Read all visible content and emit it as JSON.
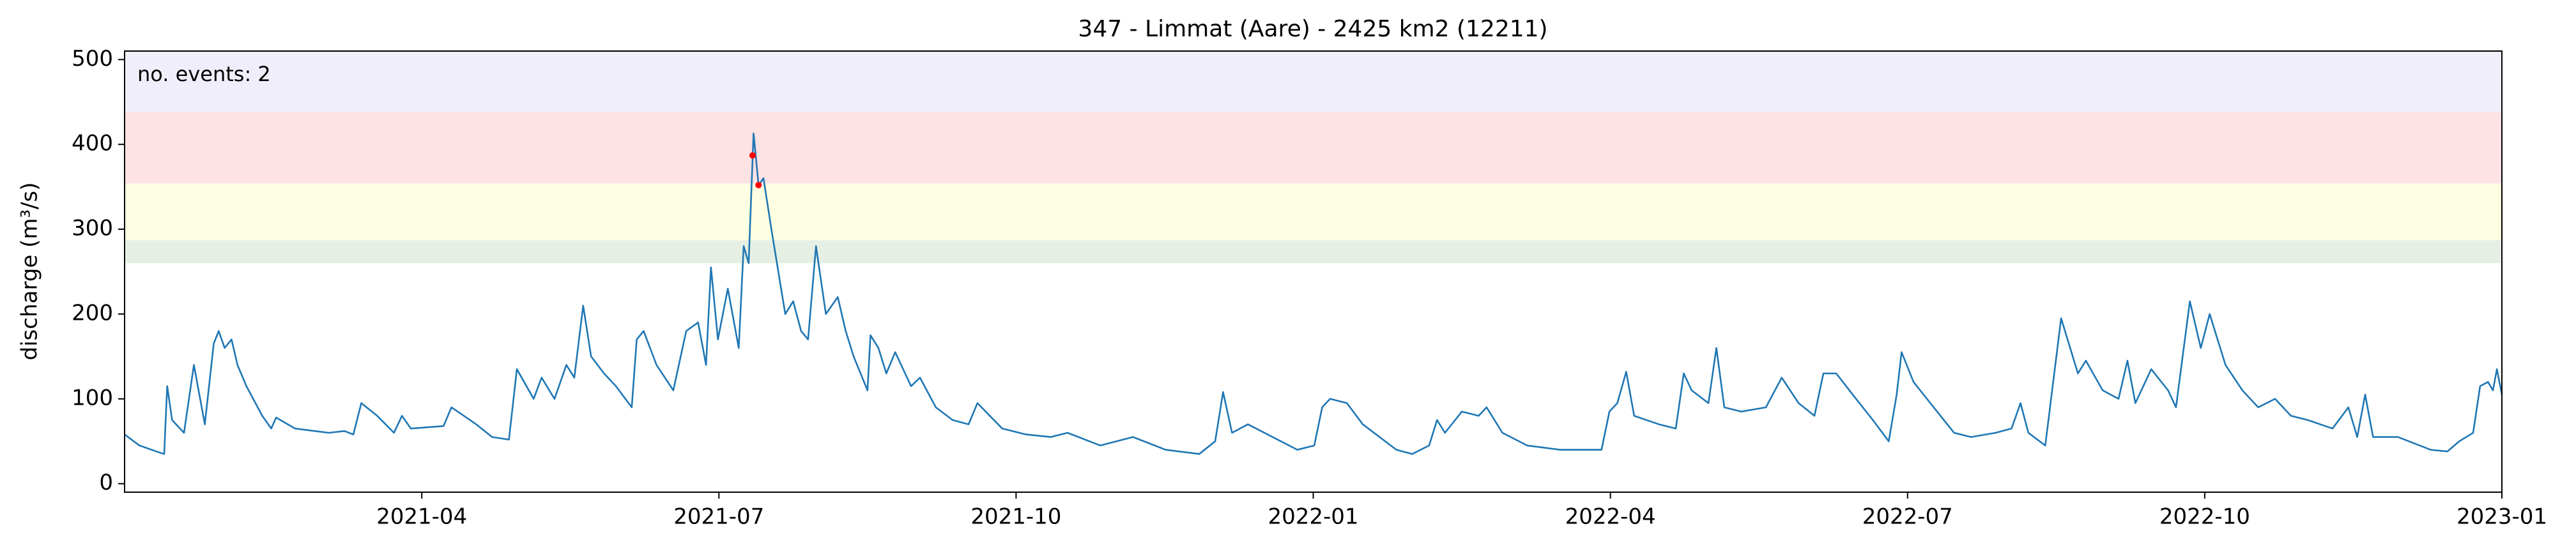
{
  "chart_data": {
    "type": "line",
    "title": "347 - Limmat (Aare) - 2425 km2 (12211)",
    "ylabel": "discharge (m³/s)",
    "annotation": "no. events: 2",
    "color": "#1f77b4",
    "x": [
      0,
      0.15,
      0.32,
      0.4,
      0.43,
      0.48,
      0.6,
      0.7,
      0.81,
      0.9,
      0.95,
      1.01,
      1.08,
      1.14,
      1.23,
      1.39,
      1.48,
      1.53,
      1.72,
      2.06,
      2.22,
      2.31,
      2.39,
      2.55,
      2.72,
      2.8,
      2.89,
      3.22,
      3.3,
      3.55,
      3.71,
      3.88,
      3.96,
      4.13,
      4.21,
      4.34,
      4.46,
      4.54,
      4.63,
      4.71,
      4.84,
      4.96,
      5.12,
      5.17,
      5.24,
      5.37,
      5.54,
      5.67,
      5.79,
      5.87,
      5.92,
      5.99,
      6.09,
      6.2,
      6.25,
      6.3,
      6.35,
      6.4,
      6.45,
      6.53,
      6.67,
      6.75,
      6.83,
      6.9,
      6.98,
      7.08,
      7.2,
      7.28,
      7.36,
      7.5,
      7.53,
      7.61,
      7.69,
      7.78,
      7.94,
      8.03,
      8.19,
      8.36,
      8.52,
      8.61,
      8.86,
      9.1,
      9.35,
      9.52,
      9.85,
      10.18,
      10.51,
      10.85,
      11.01,
      11.09,
      11.18,
      11.34,
      11.84,
      12.01,
      12.09,
      12.17,
      12.34,
      12.5,
      12.84,
      13.0,
      13.17,
      13.25,
      13.33,
      13.5,
      13.67,
      13.75,
      13.91,
      14.16,
      14.49,
      14.91,
      14.99,
      15.07,
      15.16,
      15.24,
      15.49,
      15.66,
      15.74,
      15.82,
      15.99,
      16.07,
      16.15,
      16.32,
      16.57,
      16.73,
      16.9,
      17.06,
      17.15,
      17.28,
      17.48,
      17.65,
      17.81,
      17.89,
      17.94,
      18.06,
      18.23,
      18.47,
      18.64,
      18.89,
      19.05,
      19.14,
      19.22,
      19.39,
      19.55,
      19.72,
      19.8,
      19.97,
      20.13,
      20.22,
      20.3,
      20.46,
      20.63,
      20.71,
      20.85,
      20.96,
      21.05,
      21.21,
      21.38,
      21.54,
      21.71,
      21.87,
      22.04,
      22.29,
      22.45,
      22.54,
      22.62,
      22.7,
      22.95,
      23.28,
      23.45,
      23.57,
      23.71,
      23.78,
      23.86,
      23.91,
      23.95,
      24.0
    ],
    "values": [
      58,
      45,
      38,
      35,
      115,
      75,
      60,
      140,
      70,
      165,
      180,
      160,
      170,
      140,
      115,
      80,
      65,
      78,
      65,
      60,
      62,
      58,
      95,
      80,
      60,
      80,
      65,
      68,
      90,
      70,
      55,
      52,
      135,
      100,
      125,
      100,
      140,
      125,
      210,
      150,
      130,
      115,
      90,
      170,
      180,
      140,
      110,
      180,
      190,
      140,
      255,
      170,
      230,
      160,
      280,
      260,
      413,
      352,
      360,
      300,
      200,
      215,
      180,
      170,
      280,
      200,
      220,
      180,
      150,
      110,
      175,
      160,
      130,
      155,
      115,
      125,
      90,
      75,
      70,
      95,
      65,
      58,
      55,
      60,
      45,
      55,
      40,
      35,
      50,
      108,
      60,
      70,
      40,
      45,
      90,
      100,
      95,
      70,
      40,
      35,
      45,
      75,
      60,
      85,
      80,
      90,
      60,
      45,
      40,
      40,
      85,
      95,
      132,
      80,
      70,
      65,
      130,
      110,
      95,
      160,
      90,
      85,
      90,
      125,
      95,
      80,
      130,
      130,
      100,
      75,
      50,
      105,
      155,
      120,
      95,
      60,
      55,
      60,
      65,
      95,
      60,
      45,
      195,
      130,
      145,
      110,
      100,
      145,
      95,
      135,
      110,
      90,
      215,
      160,
      200,
      140,
      110,
      90,
      100,
      80,
      75,
      65,
      90,
      55,
      105,
      55,
      55,
      40,
      38,
      50,
      60,
      115,
      120,
      110,
      135,
      105
    ],
    "events": {
      "x": [
        6.34,
        6.4
      ],
      "values": [
        387,
        352
      ],
      "color": "red"
    },
    "bands": [
      {
        "from": 260,
        "to": 287,
        "color": "#e6efe3"
      },
      {
        "from": 287,
        "to": 354,
        "color": "#fefee2"
      },
      {
        "from": 354,
        "to": 438,
        "color": "#fee2e4"
      },
      {
        "from": 438,
        "to": 510,
        "color": "#f0eefa"
      }
    ],
    "xlim": [
      0,
      24
    ],
    "ylim": [
      -10,
      510
    ],
    "xticks": [
      {
        "value": 3,
        "label": "2021-04"
      },
      {
        "value": 6,
        "label": "2021-07"
      },
      {
        "value": 9,
        "label": "2021-10"
      },
      {
        "value": 12,
        "label": "2022-01"
      },
      {
        "value": 15,
        "label": "2022-04"
      },
      {
        "value": 18,
        "label": "2022-07"
      },
      {
        "value": 21,
        "label": "2022-10"
      },
      {
        "value": 24,
        "label": "2023-01"
      }
    ],
    "yticks": [
      0,
      100,
      200,
      300,
      400,
      500
    ]
  }
}
